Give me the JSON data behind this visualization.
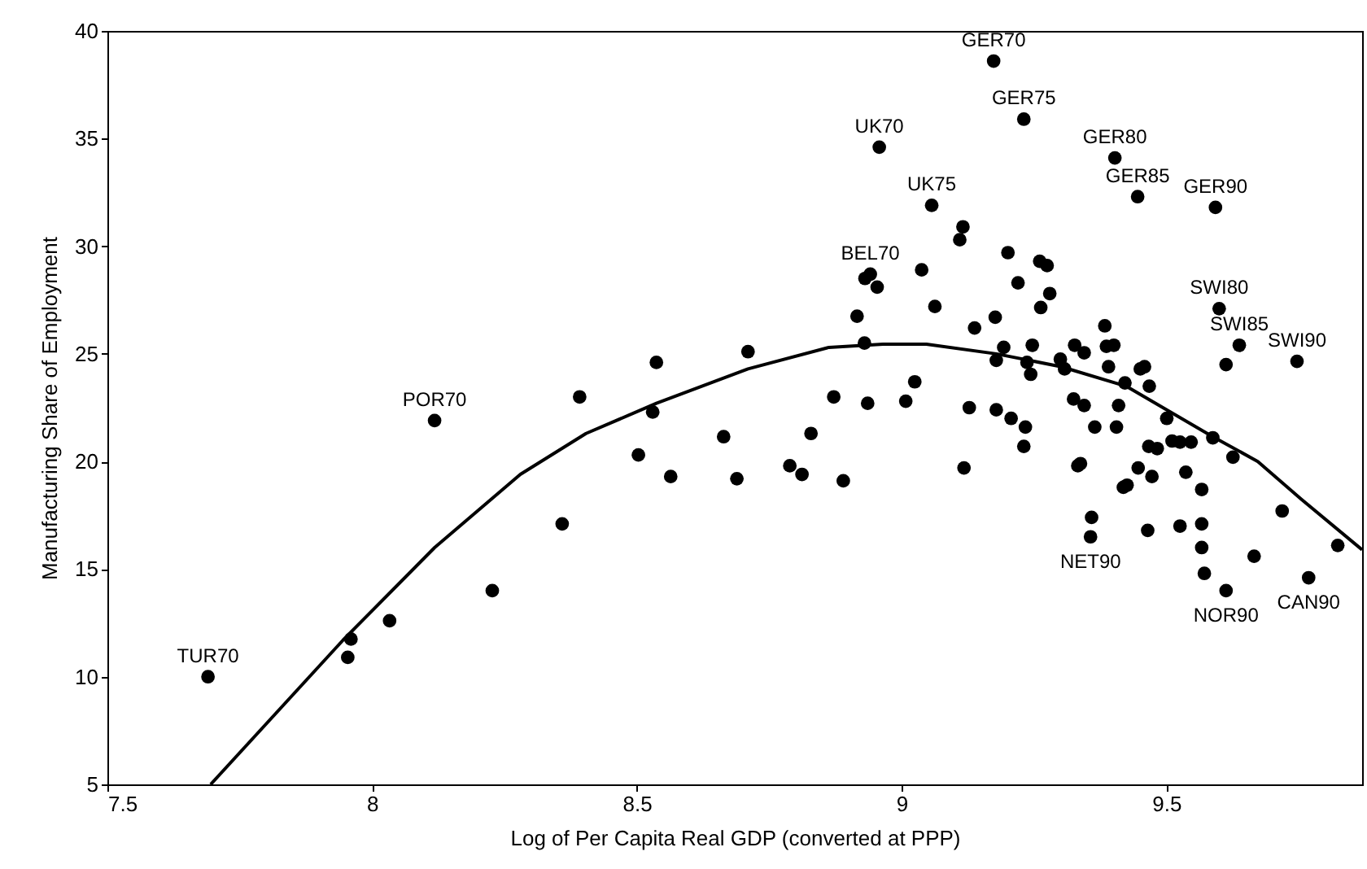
{
  "chart_data": {
    "type": "scatter",
    "xlabel": "Log of Per Capita Real GDP (converted at PPP)",
    "ylabel": "Manufacturing Share of Employment",
    "xlim": [
      7.5,
      9.87
    ],
    "xticks": [
      7.5,
      8,
      8.5,
      9,
      9.5
    ],
    "ylim": [
      5,
      40
    ],
    "yticks": [
      5,
      10,
      15,
      20,
      25,
      30,
      35,
      40
    ],
    "series": [
      {
        "color": "#000000",
        "marker": "circle",
        "x": [
          8.118,
          7.69,
          7.96,
          7.954,
          8.033,
          8.227,
          8.958,
          9.057,
          8.941,
          8.931,
          8.954,
          9.038,
          9.063,
          8.916,
          8.93,
          8.71,
          8.537,
          8.392,
          8.53,
          8.872,
          8.936,
          9.008,
          9.025,
          8.664,
          8.829,
          8.503,
          8.564,
          8.689,
          8.789,
          8.812,
          8.89,
          8.359,
          9.174,
          9.231,
          9.403,
          9.446,
          9.593,
          9.116,
          9.11,
          9.201,
          9.261,
          9.275,
          9.22,
          9.28,
          9.263,
          9.177,
          9.138,
          9.6,
          9.638,
          9.613,
          9.747,
          9.384,
          9.327,
          9.345,
          9.387,
          9.401,
          9.247,
          9.193,
          9.179,
          9.237,
          9.244,
          9.3,
          9.308,
          9.391,
          9.451,
          9.459,
          9.422,
          9.468,
          9.325,
          9.345,
          9.41,
          9.128,
          9.179,
          9.207,
          9.365,
          9.406,
          9.234,
          9.501,
          9.231,
          9.118,
          9.333,
          9.338,
          9.467,
          9.483,
          9.511,
          9.526,
          9.547,
          9.588,
          9.626,
          9.447,
          9.473,
          9.419,
          9.426,
          9.537,
          9.567,
          9.359,
          9.357,
          9.465,
          9.526,
          9.567,
          9.567,
          9.572,
          9.613,
          9.719,
          9.666,
          9.769,
          9.824
        ],
        "values": [
          21.9,
          10.0,
          11.75,
          10.9,
          12.6,
          14.0,
          34.6,
          31.9,
          28.7,
          28.5,
          28.1,
          28.9,
          27.2,
          26.75,
          25.5,
          25.1,
          24.6,
          23.0,
          22.3,
          23.0,
          22.7,
          22.8,
          23.7,
          21.15,
          21.3,
          20.3,
          19.3,
          19.2,
          19.8,
          19.4,
          19.1,
          17.1,
          38.6,
          35.9,
          34.1,
          32.3,
          31.8,
          30.9,
          30.3,
          29.7,
          29.3,
          29.1,
          28.3,
          27.8,
          27.15,
          26.7,
          26.2,
          27.1,
          25.4,
          24.5,
          24.65,
          26.3,
          25.4,
          25.05,
          25.35,
          25.4,
          25.4,
          25.3,
          24.7,
          24.6,
          24.05,
          24.75,
          24.3,
          24.4,
          24.3,
          24.4,
          23.65,
          23.5,
          22.9,
          22.6,
          22.6,
          22.5,
          22.4,
          22.0,
          21.6,
          21.6,
          21.6,
          22.0,
          20.7,
          19.7,
          19.8,
          19.9,
          20.7,
          20.6,
          20.95,
          20.9,
          20.9,
          21.1,
          20.2,
          19.7,
          19.3,
          18.8,
          18.9,
          19.5,
          18.7,
          17.4,
          16.5,
          16.8,
          17.0,
          17.1,
          16.0,
          14.8,
          14.0,
          17.7,
          15.6,
          14.6,
          16.1
        ]
      },
      {
        "type": "line",
        "color": "#000000",
        "x": [
          7.695,
          7.945,
          8.118,
          8.28,
          8.404,
          8.537,
          8.71,
          8.863,
          8.965,
          9.047,
          9.179,
          9.302,
          9.424,
          9.588,
          9.673,
          9.755,
          9.87
        ],
        "values": [
          5.0,
          11.7,
          16.0,
          19.4,
          21.3,
          22.7,
          24.3,
          25.3,
          25.45,
          25.45,
          25.0,
          24.4,
          23.5,
          21.15,
          20.0,
          18.25,
          15.9
        ]
      }
    ],
    "annotations": [
      {
        "text": "POR70",
        "x": 8.118,
        "y": 21.9
      },
      {
        "text": "TUR70",
        "x": 7.69,
        "y": 10.0
      },
      {
        "text": "UK70",
        "x": 8.958,
        "y": 34.6
      },
      {
        "text": "UK75",
        "x": 9.057,
        "y": 31.9
      },
      {
        "text": "BEL70",
        "x": 8.941,
        "y": 28.7
      },
      {
        "text": "GER70",
        "x": 9.174,
        "y": 38.6
      },
      {
        "text": "GER75",
        "x": 9.231,
        "y": 35.9
      },
      {
        "text": "GER80",
        "x": 9.403,
        "y": 34.1
      },
      {
        "text": "GER85",
        "x": 9.446,
        "y": 32.3
      },
      {
        "text": "GER90",
        "x": 9.593,
        "y": 31.8
      },
      {
        "text": "SWI80",
        "x": 9.6,
        "y": 27.1
      },
      {
        "text": "SWI85",
        "x": 9.638,
        "y": 25.4
      },
      {
        "text": "SWI90",
        "x": 9.747,
        "y": 24.65
      },
      {
        "text": "NET90",
        "x": 9.357,
        "y": 16.5
      },
      {
        "text": "NOR90",
        "x": 9.613,
        "y": 14.0
      },
      {
        "text": "CAN90",
        "x": 9.769,
        "y": 14.6
      }
    ]
  }
}
